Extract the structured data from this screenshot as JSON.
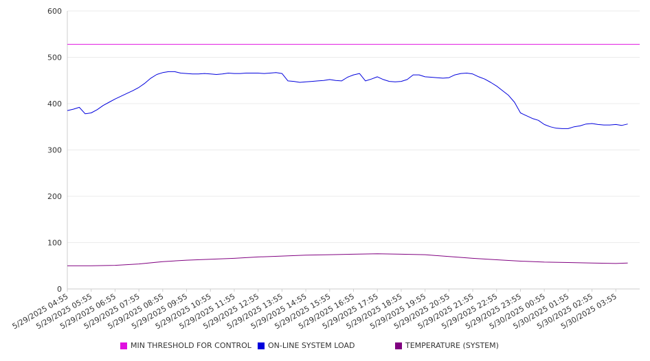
{
  "chart_data": {
    "type": "line",
    "ylim": [
      0,
      600
    ],
    "y_ticks": [
      "0",
      "100",
      "200",
      "300",
      "400",
      "500",
      "600"
    ],
    "x_ticks": [
      "5/29/2025 04:55",
      "5/29/2025 05:55",
      "5/29/2025 06:55",
      "5/29/2025 07:55",
      "5/29/2025 08:55",
      "5/29/2025 09:55",
      "5/29/2025 10:55",
      "5/29/2025 11:55",
      "5/29/2025 12:55",
      "5/29/2025 13:55",
      "5/29/2025 14:55",
      "5/29/2025 15:55",
      "5/29/2025 16:55",
      "5/29/2025 17:55",
      "5/29/2025 18:55",
      "5/29/2025 19:55",
      "5/29/2025 20:55",
      "5/29/2025 21:55",
      "5/29/2025 22:55",
      "5/29/2025 23:55",
      "5/30/2025 00:55",
      "5/30/2025 01:55",
      "5/30/2025 02:55",
      "5/30/2025 03:55"
    ],
    "grid": true,
    "legend_position": "bottom",
    "series": [
      {
        "name": "MIN THRESHOLD FOR CONTROL",
        "color": "#e010e0",
        "x": [
          "5/29/2025 04:55",
          "5/30/2025 04:55"
        ],
        "values": [
          528,
          528
        ]
      },
      {
        "name": "ON-LINE SYSTEM LOAD",
        "color": "#0000dd",
        "x": [
          "5/29/2025 04:55",
          "5/29/2025 05:10",
          "5/29/2025 05:25",
          "5/29/2025 05:40",
          "5/29/2025 05:55",
          "5/29/2025 06:10",
          "5/29/2025 06:25",
          "5/29/2025 06:40",
          "5/29/2025 06:55",
          "5/29/2025 07:10",
          "5/29/2025 07:25",
          "5/29/2025 07:40",
          "5/29/2025 07:55",
          "5/29/2025 08:10",
          "5/29/2025 08:25",
          "5/29/2025 08:40",
          "5/29/2025 08:55",
          "5/29/2025 09:10",
          "5/29/2025 09:25",
          "5/29/2025 09:40",
          "5/29/2025 09:55",
          "5/29/2025 10:10",
          "5/29/2025 10:25",
          "5/29/2025 10:40",
          "5/29/2025 10:55",
          "5/29/2025 11:10",
          "5/29/2025 11:25",
          "5/29/2025 11:40",
          "5/29/2025 11:55",
          "5/29/2025 12:10",
          "5/29/2025 12:25",
          "5/29/2025 12:40",
          "5/29/2025 12:55",
          "5/29/2025 13:10",
          "5/29/2025 13:25",
          "5/29/2025 13:40",
          "5/29/2025 13:55",
          "5/29/2025 14:10",
          "5/29/2025 14:25",
          "5/29/2025 14:40",
          "5/29/2025 14:55",
          "5/29/2025 15:10",
          "5/29/2025 15:25",
          "5/29/2025 15:40",
          "5/29/2025 15:55",
          "5/29/2025 16:10",
          "5/29/2025 16:25",
          "5/29/2025 16:40",
          "5/29/2025 16:55",
          "5/29/2025 17:10",
          "5/29/2025 17:25",
          "5/29/2025 17:40",
          "5/29/2025 17:55",
          "5/29/2025 18:10",
          "5/29/2025 18:25",
          "5/29/2025 18:40",
          "5/29/2025 18:55",
          "5/29/2025 19:10",
          "5/29/2025 19:25",
          "5/29/2025 19:40",
          "5/29/2025 19:55",
          "5/29/2025 20:10",
          "5/29/2025 20:25",
          "5/29/2025 20:40",
          "5/29/2025 20:55",
          "5/29/2025 21:10",
          "5/29/2025 21:25",
          "5/29/2025 21:40",
          "5/29/2025 21:55",
          "5/29/2025 22:10",
          "5/29/2025 22:25",
          "5/29/2025 22:40",
          "5/29/2025 22:55",
          "5/29/2025 23:10",
          "5/29/2025 23:25",
          "5/29/2025 23:40",
          "5/29/2025 23:55",
          "5/30/2025 00:10",
          "5/30/2025 00:25",
          "5/30/2025 00:40",
          "5/30/2025 00:55",
          "5/30/2025 01:10",
          "5/30/2025 01:25",
          "5/30/2025 01:40",
          "5/30/2025 01:55",
          "5/30/2025 02:10",
          "5/30/2025 02:25",
          "5/30/2025 02:40",
          "5/30/2025 02:55",
          "5/30/2025 03:10",
          "5/30/2025 03:25",
          "5/30/2025 03:40",
          "5/30/2025 03:55",
          "5/30/2025 04:10",
          "5/30/2025 04:25"
        ],
        "values": [
          385,
          388,
          392,
          378,
          380,
          387,
          396,
          403,
          410,
          416,
          422,
          428,
          435,
          444,
          455,
          463,
          467,
          469,
          469,
          466,
          465,
          464,
          464,
          465,
          464,
          463,
          464,
          466,
          465,
          465,
          466,
          466,
          466,
          465,
          466,
          467,
          465,
          449,
          448,
          446,
          447,
          448,
          449,
          450,
          452,
          450,
          449,
          457,
          462,
          465,
          449,
          453,
          458,
          452,
          448,
          447,
          448,
          452,
          462,
          462,
          458,
          457,
          456,
          455,
          456,
          462,
          465,
          466,
          464,
          458,
          453,
          446,
          438,
          428,
          418,
          403,
          380,
          374,
          368,
          364,
          355,
          350,
          347,
          346,
          346,
          350,
          352,
          356,
          357,
          355,
          354,
          354,
          355,
          353,
          356
        ]
      },
      {
        "name": "TEMPERATURE (SYSTEM)",
        "color": "#800080",
        "x": [
          "5/29/2025 04:55",
          "5/29/2025 05:55",
          "5/29/2025 06:55",
          "5/29/2025 07:55",
          "5/29/2025 08:55",
          "5/29/2025 09:55",
          "5/29/2025 10:55",
          "5/29/2025 11:55",
          "5/29/2025 12:55",
          "5/29/2025 13:55",
          "5/29/2025 14:55",
          "5/29/2025 15:55",
          "5/29/2025 16:55",
          "5/29/2025 17:55",
          "5/29/2025 18:55",
          "5/29/2025 19:55",
          "5/29/2025 20:55",
          "5/29/2025 21:55",
          "5/29/2025 22:55",
          "5/29/2025 23:55",
          "5/30/2025 00:55",
          "5/30/2025 01:55",
          "5/30/2025 02:55",
          "5/30/2025 03:55",
          "5/30/2025 04:25"
        ],
        "values": [
          50,
          50,
          51,
          54,
          59,
          62,
          64,
          66,
          69,
          71,
          73,
          74,
          75,
          76,
          75,
          74,
          70,
          66,
          63,
          60,
          58,
          57,
          56,
          55,
          56
        ]
      }
    ]
  }
}
